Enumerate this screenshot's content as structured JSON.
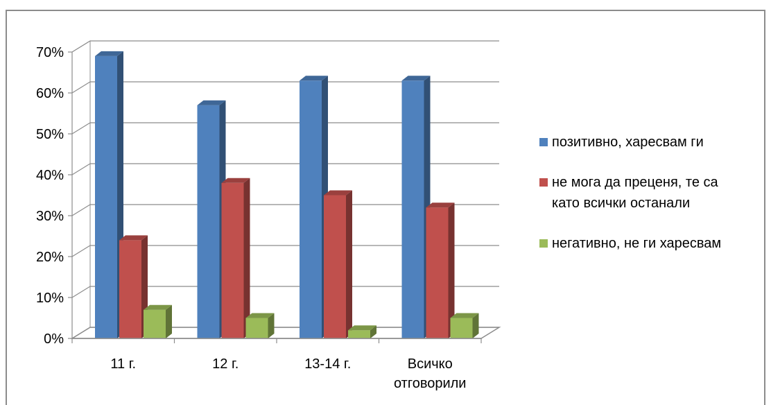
{
  "chart_data": {
    "type": "bar",
    "categories": [
      "11 г.",
      "12 г.",
      "13-14 г.",
      "Всичко отговорили"
    ],
    "category_lines": [
      [
        "11 г."
      ],
      [
        "12 г."
      ],
      [
        "13-14 г."
      ],
      [
        "Всичко",
        "отговорили"
      ]
    ],
    "series": [
      {
        "name": "позитивно, харесвам ги",
        "values": [
          69,
          57,
          63,
          63
        ],
        "color": "#4F81BD"
      },
      {
        "name": "не мога да преценя, те са като всички останали",
        "values": [
          24,
          38,
          35,
          32
        ],
        "color": "#C0504D"
      },
      {
        "name": "негативно, не ги харесвам",
        "values": [
          7,
          5,
          2,
          5
        ],
        "color": "#9BBB59"
      }
    ],
    "y_ticks": [
      "0%",
      "10%",
      "20%",
      "30%",
      "40%",
      "50%",
      "60%",
      "70%"
    ],
    "ylim": [
      0,
      70
    ],
    "grid": true,
    "three_d": true,
    "legend_position": "right"
  },
  "legend": {
    "items": [
      {
        "lines": [
          "позитивно, харесвам ги"
        ],
        "color": "#4F81BD"
      },
      {
        "lines": [
          "не мога да преценя, те са",
          "като всички останали"
        ],
        "color": "#C0504D"
      },
      {
        "lines": [
          "негативно, не ги харесвам"
        ],
        "color": "#9BBB59"
      }
    ]
  }
}
